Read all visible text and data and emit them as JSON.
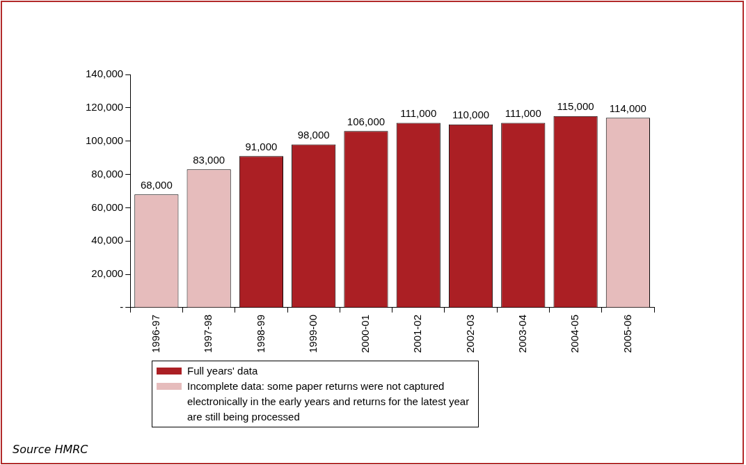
{
  "chart_data": {
    "type": "bar",
    "stacked": true,
    "categories": [
      "1996-97",
      "1997-98",
      "1998-99",
      "1999-00",
      "2000-01",
      "2001-02",
      "2002-03",
      "2003-04",
      "2004-05",
      "2005-06"
    ],
    "series": [
      {
        "name": "Full years' data",
        "color": "#ab1f24",
        "values": [
          null,
          null,
          91000,
          98000,
          106000,
          111000,
          110000,
          111000,
          115000,
          null
        ],
        "value_labels": [
          null,
          null,
          "91,000",
          "98,000",
          "106,000",
          "111,000",
          "110,000",
          "111,000",
          "115,000",
          null
        ]
      },
      {
        "name": "Incomplete data: some paper returns were not captured electronically in the early years and returns for the latest year are still being processed",
        "color": "#e6bcbc",
        "values": [
          68000,
          83000,
          null,
          null,
          null,
          null,
          null,
          null,
          null,
          114000
        ],
        "value_labels": [
          "68,000",
          "83,000",
          null,
          null,
          null,
          null,
          null,
          null,
          null,
          "114,000"
        ]
      }
    ],
    "ylim": [
      0,
      140000
    ],
    "yticks": [
      {
        "value": 0,
        "label": "-"
      },
      {
        "value": 20000,
        "label": "20,000"
      },
      {
        "value": 40000,
        "label": "40,000"
      },
      {
        "value": 60000,
        "label": "60,000"
      },
      {
        "value": 80000,
        "label": "80,000"
      },
      {
        "value": 100000,
        "label": "100,000"
      },
      {
        "value": 120000,
        "label": "120,000"
      },
      {
        "value": 140000,
        "label": "140,000"
      }
    ],
    "grid": false,
    "legend": "bottom",
    "annotations": [
      "Source HMRC"
    ]
  }
}
